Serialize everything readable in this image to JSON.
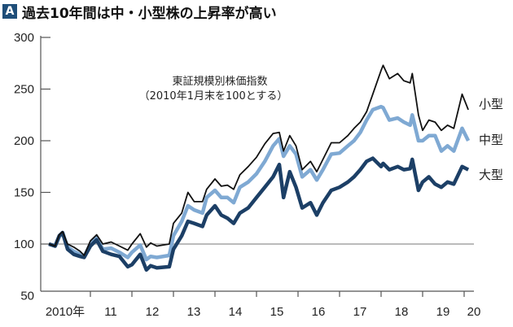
{
  "header": {
    "badge": "A",
    "title": "過去10年間は中・小型株の上昇率が高い"
  },
  "chart_data": {
    "type": "line",
    "title": "過去10年間は中・小型株の上昇率が高い",
    "annotation": [
      "東証規模別株価指数",
      "（2010年1月末を100とする）"
    ],
    "xlabel": "",
    "ylabel": "",
    "ylim": [
      50,
      300
    ],
    "yticks": [
      50,
      100,
      150,
      200,
      250,
      300
    ],
    "xlim": [
      2010,
      2020.2
    ],
    "xticks": [
      {
        "value": 2010,
        "label": "2010年"
      },
      {
        "value": 2011,
        "label": "11"
      },
      {
        "value": 2012,
        "label": "12"
      },
      {
        "value": 2013,
        "label": "13"
      },
      {
        "value": 2014,
        "label": "14"
      },
      {
        "value": 2015,
        "label": "15"
      },
      {
        "value": 2016,
        "label": "16"
      },
      {
        "value": 2017,
        "label": "17"
      },
      {
        "value": 2018,
        "label": "18"
      },
      {
        "value": 2019,
        "label": "19"
      },
      {
        "value": 2020,
        "label": "20"
      }
    ],
    "reference_line": 100,
    "grid": false,
    "x": [
      2010.0,
      2010.15,
      2010.25,
      2010.33,
      2010.45,
      2010.6,
      2010.75,
      2010.85,
      2011.0,
      2011.15,
      2011.3,
      2011.5,
      2011.7,
      2011.9,
      2012.0,
      2012.2,
      2012.35,
      2012.45,
      2012.6,
      2012.9,
      2013.0,
      2013.2,
      2013.35,
      2013.5,
      2013.7,
      2013.8,
      2014.0,
      2014.15,
      2014.3,
      2014.45,
      2014.6,
      2014.8,
      2015.0,
      2015.2,
      2015.4,
      2015.55,
      2015.65,
      2015.8,
      2015.95,
      2016.1,
      2016.3,
      2016.45,
      2016.6,
      2016.8,
      2017.0,
      2017.2,
      2017.35,
      2017.5,
      2017.65,
      2017.8,
      2018.0,
      2018.05,
      2018.2,
      2018.4,
      2018.55,
      2018.7,
      2018.75,
      2018.9,
      2019.0,
      2019.15,
      2019.3,
      2019.45,
      2019.6,
      2019.75,
      2019.95,
      2020.1
    ],
    "series": [
      {
        "name": "小型",
        "color": "#111111",
        "values": [
          100,
          98,
          109,
          112,
          100,
          97,
          93,
          89,
          103,
          109,
          100,
          102,
          98,
          94,
          100,
          110,
          97,
          101,
          98,
          100,
          120,
          130,
          150,
          141,
          141,
          153,
          163,
          156,
          157,
          153,
          167,
          175,
          184,
          197,
          207,
          208,
          190,
          205,
          195,
          172,
          180,
          170,
          182,
          198,
          198,
          205,
          212,
          218,
          228,
          245,
          268,
          273,
          260,
          265,
          258,
          256,
          265,
          225,
          210,
          220,
          218,
          210,
          215,
          212,
          245,
          230
        ]
      },
      {
        "name": "中型",
        "color": "#7fa9d3",
        "values": [
          100,
          98,
          107,
          111,
          97,
          93,
          90,
          88,
          100,
          106,
          95,
          96,
          92,
          87,
          92,
          99,
          85,
          88,
          87,
          89,
          108,
          122,
          137,
          133,
          130,
          145,
          152,
          145,
          145,
          140,
          155,
          160,
          168,
          180,
          195,
          202,
          185,
          195,
          187,
          165,
          172,
          162,
          172,
          187,
          188,
          195,
          200,
          208,
          220,
          230,
          233,
          232,
          220,
          222,
          218,
          215,
          225,
          200,
          200,
          205,
          205,
          190,
          195,
          190,
          212,
          200
        ]
      },
      {
        "name": "大型",
        "color": "#1c3f66",
        "values": [
          100,
          98,
          108,
          111,
          95,
          90,
          88,
          87,
          98,
          104,
          93,
          90,
          88,
          78,
          80,
          90,
          75,
          79,
          77,
          78,
          95,
          108,
          122,
          120,
          117,
          128,
          137,
          128,
          125,
          120,
          130,
          135,
          145,
          155,
          165,
          177,
          145,
          170,
          155,
          135,
          140,
          128,
          140,
          152,
          155,
          160,
          165,
          172,
          180,
          183,
          175,
          178,
          172,
          175,
          172,
          173,
          182,
          152,
          160,
          165,
          158,
          155,
          160,
          158,
          175,
          172
        ]
      }
    ]
  }
}
